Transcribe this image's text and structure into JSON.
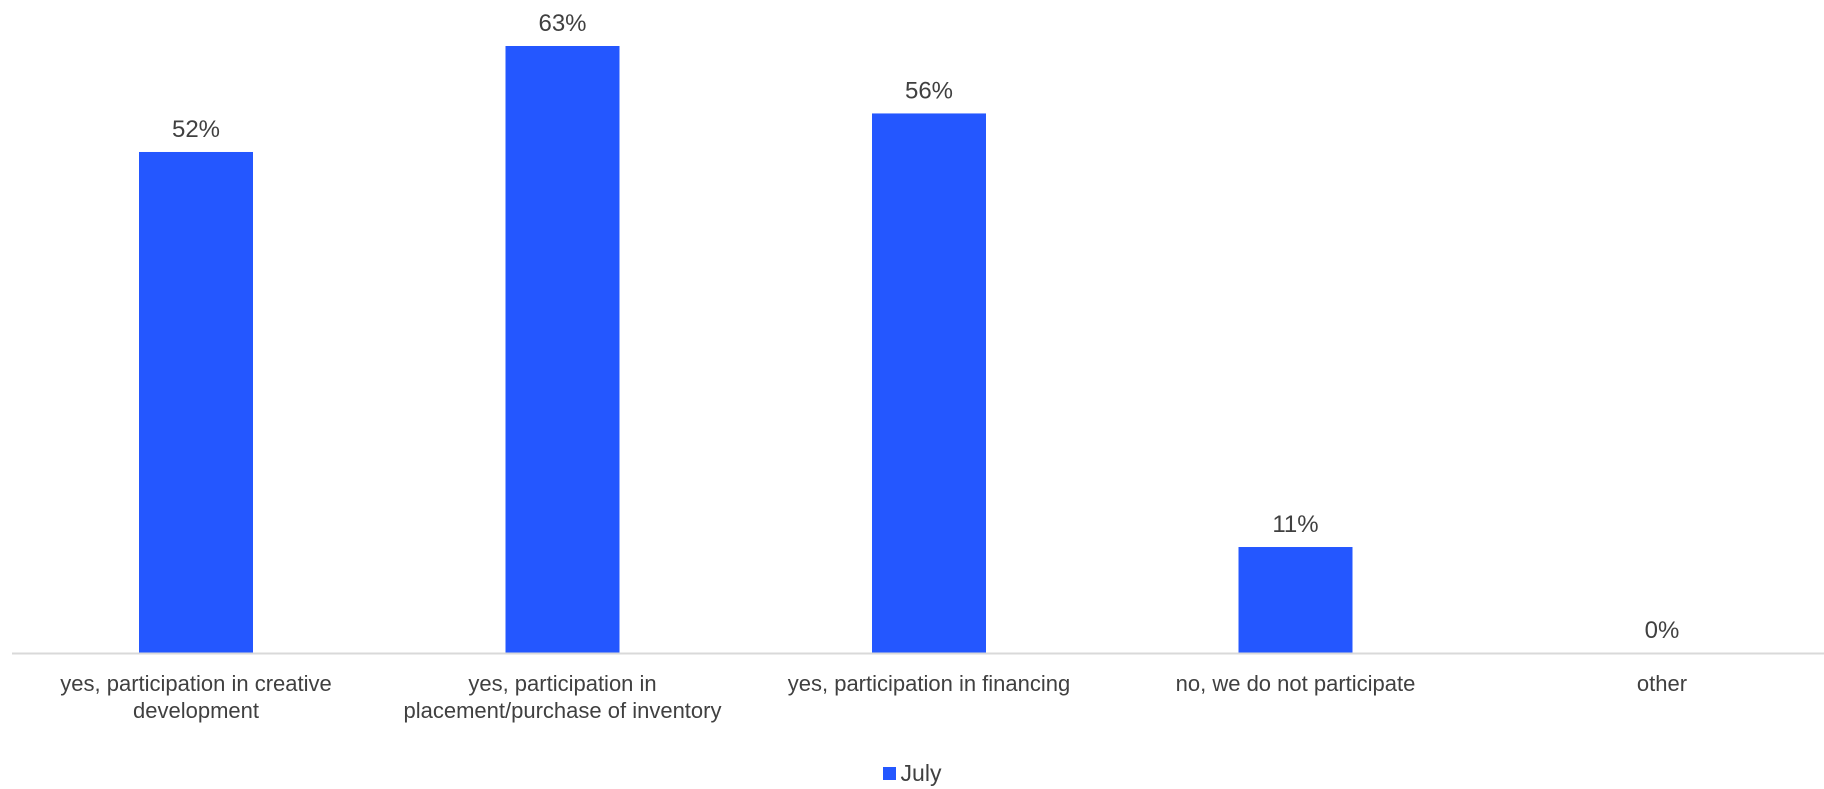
{
  "chart_data": {
    "type": "bar",
    "title": "",
    "xlabel": "",
    "ylabel": "",
    "categories": [
      "yes, participation in creative development",
      "yes, participation in placement/purchase of inventory",
      "yes, participation in financing",
      "no, we do not participate",
      "other"
    ],
    "series": [
      {
        "name": "July",
        "values": [
          52,
          63,
          56,
          11,
          0
        ],
        "labels": [
          "52%",
          "63%",
          "56%",
          "11%",
          "0%"
        ]
      }
    ],
    "ylim": [
      0,
      65
    ],
    "grid": false,
    "legend_position": "bottom",
    "colors": {
      "bar": "#2457FF",
      "axis": "#D9D9D9",
      "text": "#404040"
    }
  }
}
